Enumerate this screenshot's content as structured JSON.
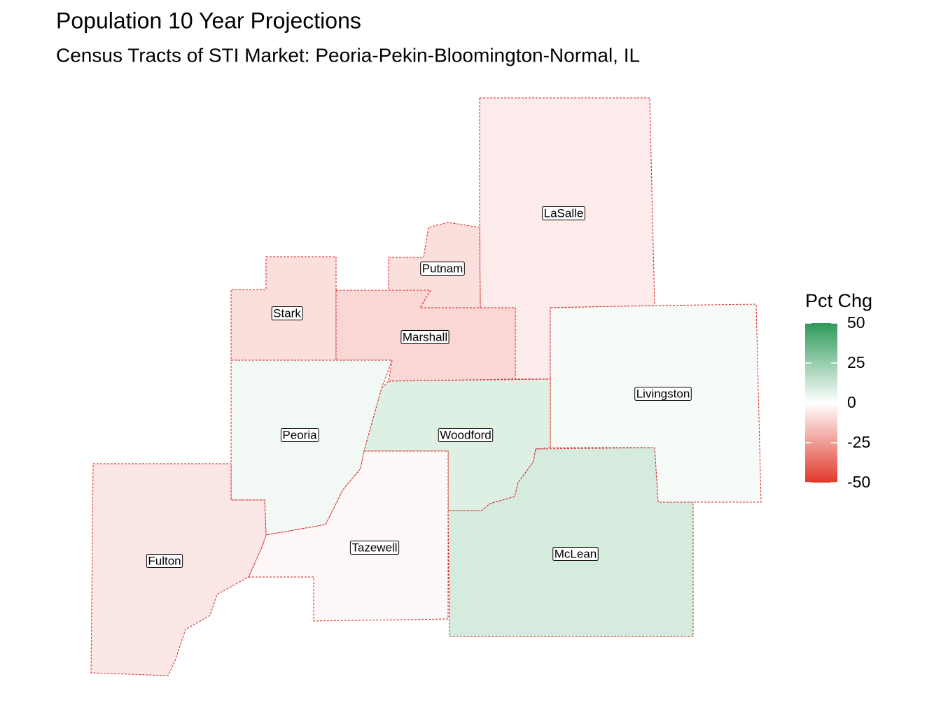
{
  "title": "Population 10 Year Projections",
  "subtitle": "Census Tracts of STI Market: Peoria-Pekin-Bloomington-Normal, IL",
  "counties": [
    {
      "name": "LaSalle",
      "pct_chg": -5
    },
    {
      "name": "Putnam",
      "pct_chg": -8
    },
    {
      "name": "Stark",
      "pct_chg": -8
    },
    {
      "name": "Marshall",
      "pct_chg": -10
    },
    {
      "name": "Livingston",
      "pct_chg": 2
    },
    {
      "name": "Peoria",
      "pct_chg": 3
    },
    {
      "name": "Woodford",
      "pct_chg": 8
    },
    {
      "name": "McLean",
      "pct_chg": 10
    },
    {
      "name": "Tazewell",
      "pct_chg": -2
    },
    {
      "name": "Fulton",
      "pct_chg": -6
    }
  ],
  "legend": {
    "title": "Pct Chg",
    "limits": [
      -50,
      50
    ],
    "ticks": [
      50,
      25,
      0,
      -25,
      -50
    ],
    "low_color": "#e0392c",
    "mid_color": "#ffffff",
    "high_color": "#2e9a59"
  }
}
